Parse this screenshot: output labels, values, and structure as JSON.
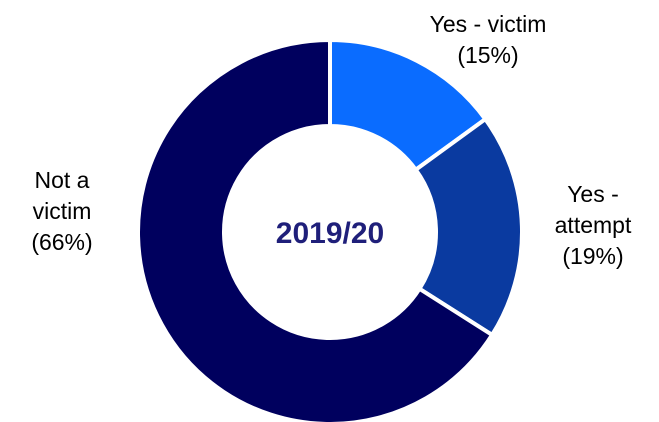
{
  "chart_data": {
    "type": "pie",
    "variant": "donut",
    "center_label": "2019/20",
    "slices": [
      {
        "category": "Yes - victim",
        "label_lines": [
          "Yes - victim",
          "(15%)"
        ],
        "value": 15,
        "color": "#0a6cff"
      },
      {
        "category": "Yes - attempt",
        "label_lines": [
          "Yes -",
          "attempt",
          "(19%)"
        ],
        "value": 19,
        "color": "#0a3aa0"
      },
      {
        "category": "Not a victim",
        "label_lines": [
          "Not a",
          "victim",
          "(66%)"
        ],
        "value": 66,
        "color": "#00005e"
      }
    ],
    "start_angle_deg": 0,
    "direction": "clockwise",
    "legend": "none"
  }
}
